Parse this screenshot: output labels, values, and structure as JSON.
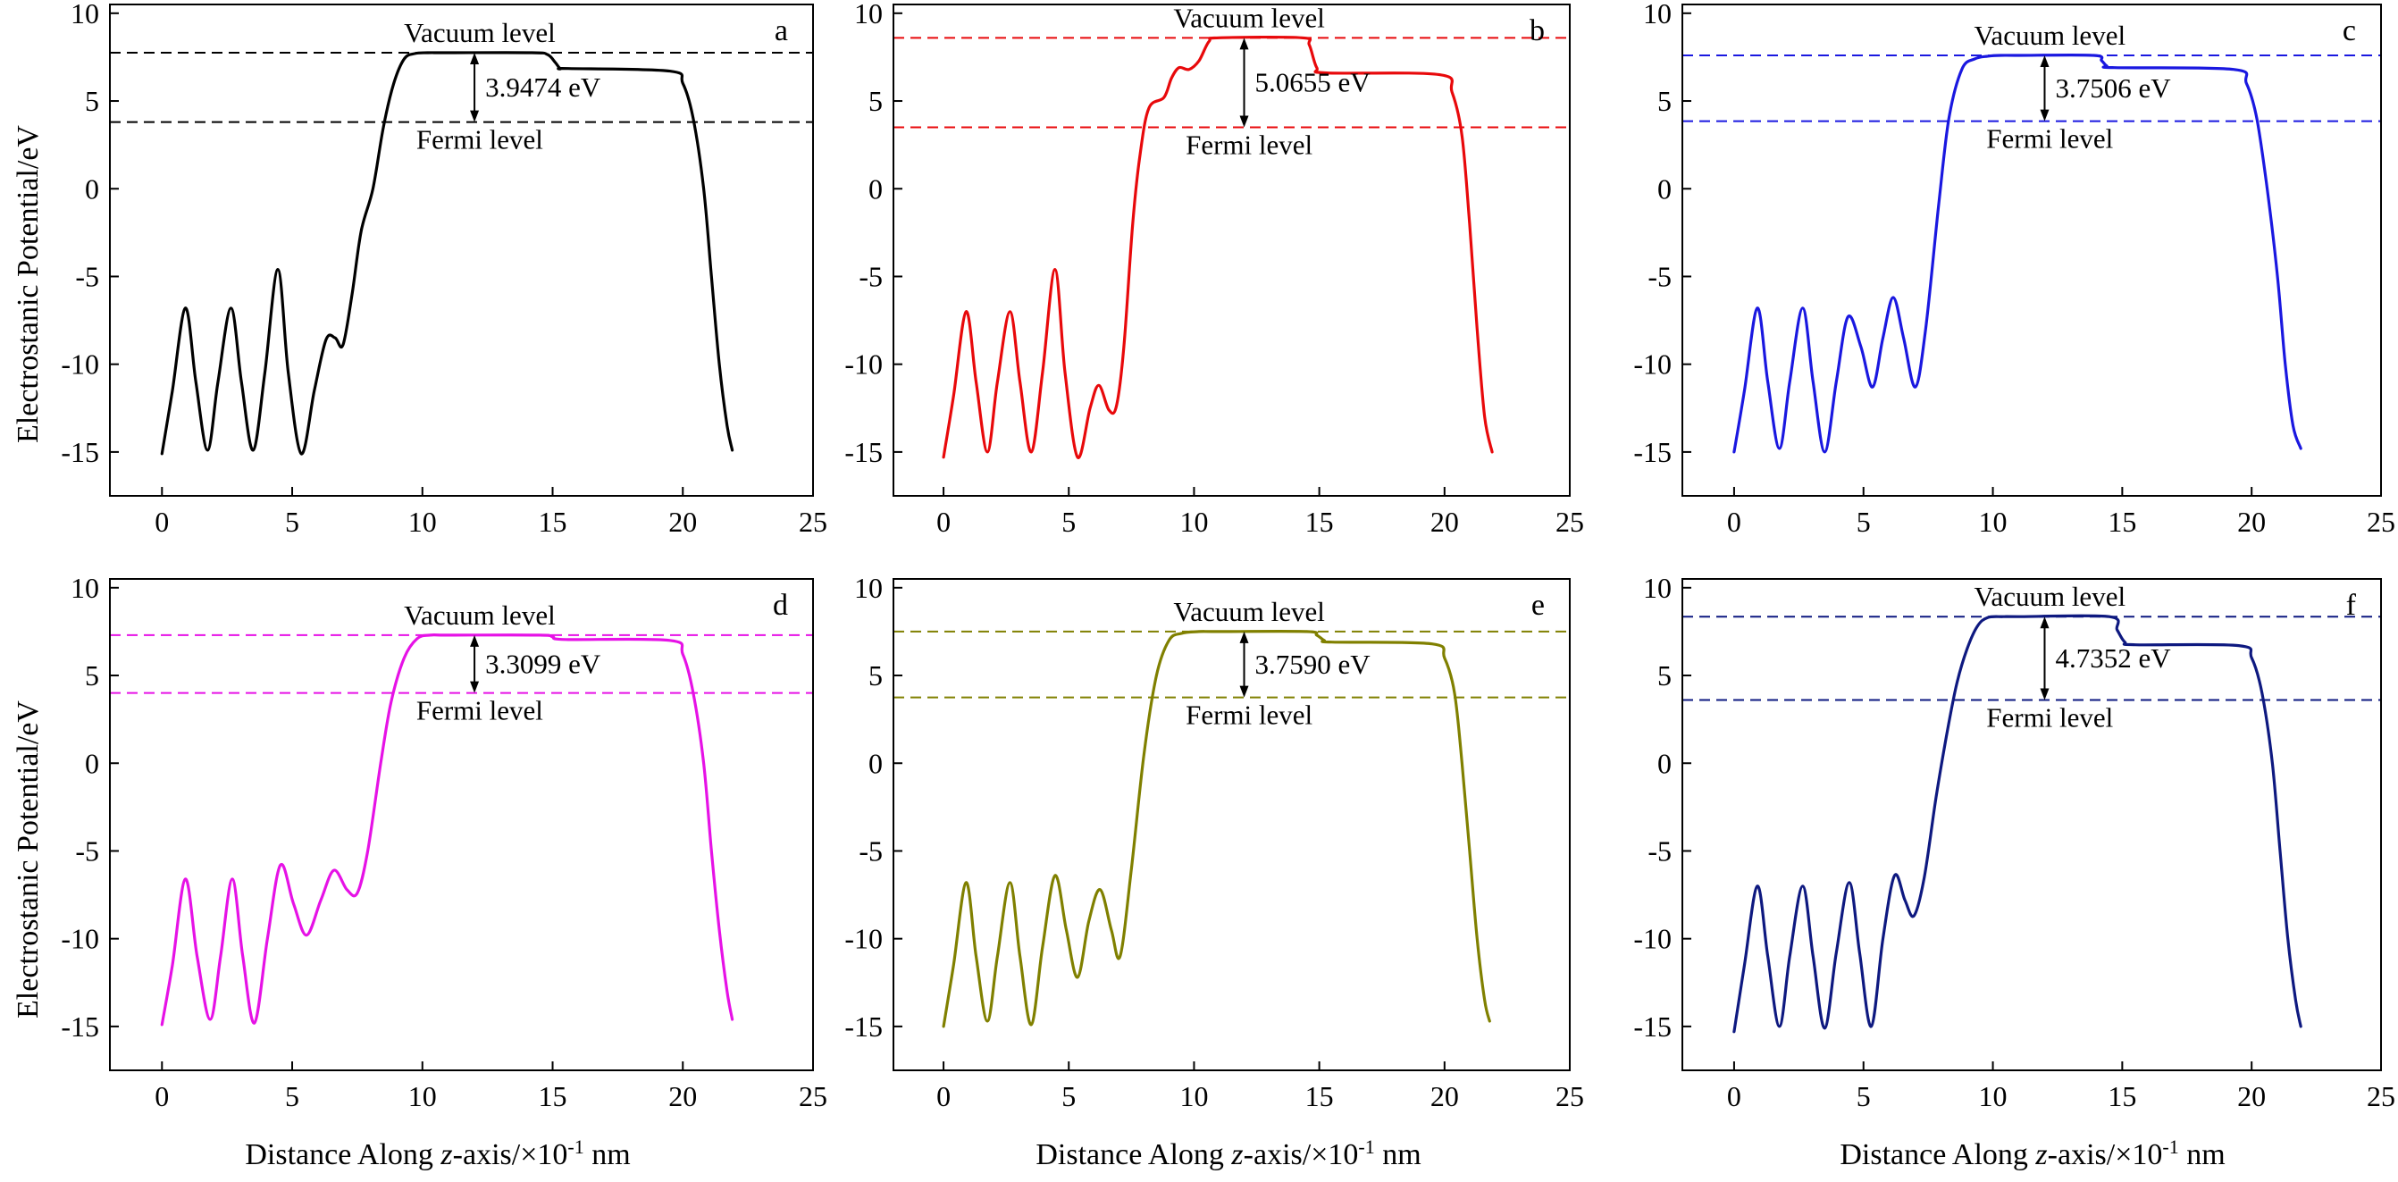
{
  "figure": {
    "y_axis_label": "Electrostanic Potential/eV",
    "x_axis_label_prefix": "Distance Along ",
    "x_axis_label_italic": "z",
    "x_axis_label_mid": "-axis/×10",
    "x_axis_label_sup": "-1",
    "x_axis_label_suffix": " nm",
    "vacuum_label": "Vacuum level",
    "fermi_label": "Fermi level"
  },
  "chart_data": [
    {
      "type": "line",
      "panel_label": "a",
      "color": "#000000",
      "xlim": [
        -2,
        25
      ],
      "ylim": [
        -17.5,
        10.5
      ],
      "xticks": [
        0,
        5,
        10,
        15,
        20,
        25
      ],
      "yticks": [
        -15,
        -10,
        -5,
        0,
        5,
        10
      ],
      "vacuum_level": 7.75,
      "fermi_level": 3.8,
      "gap_label": "3.9474 eV",
      "x": [
        0,
        0.4,
        0.9,
        1.3,
        1.75,
        2.15,
        2.65,
        3.05,
        3.5,
        3.95,
        4.45,
        4.85,
        5.35,
        5.85,
        6.3,
        6.65,
        6.95,
        7.3,
        7.65,
        8.1,
        8.5,
        8.9,
        9.3,
        9.7,
        10.2,
        11,
        14.2,
        14.8,
        15.1,
        15.3,
        15.6,
        19.5,
        20.0,
        20.4,
        20.8,
        21.1,
        21.4,
        21.7,
        21.9
      ],
      "y": [
        -15.1,
        -11.5,
        -6.8,
        -11.0,
        -14.9,
        -11.0,
        -6.8,
        -11.0,
        -14.9,
        -10.5,
        -4.6,
        -10.5,
        -15.1,
        -11.5,
        -8.6,
        -8.5,
        -8.9,
        -6.0,
        -2.4,
        0.0,
        3.5,
        6.0,
        7.4,
        7.7,
        7.75,
        7.75,
        7.75,
        7.65,
        7.2,
        6.85,
        6.85,
        6.7,
        6.0,
        4.0,
        0.0,
        -5.0,
        -10.0,
        -13.5,
        -14.9
      ]
    },
    {
      "type": "line",
      "panel_label": "b",
      "color": "#e8090b",
      "xlim": [
        -2,
        25
      ],
      "ylim": [
        -17.5,
        10.5
      ],
      "xticks": [
        0,
        5,
        10,
        15,
        20,
        25
      ],
      "yticks": [
        -15,
        -10,
        -5,
        0,
        5,
        10
      ],
      "vacuum_level": 8.6,
      "fermi_level": 3.5,
      "gap_label": "5.0655 eV",
      "x": [
        0,
        0.4,
        0.9,
        1.3,
        1.75,
        2.15,
        2.65,
        3.05,
        3.5,
        3.95,
        4.45,
        4.85,
        5.35,
        5.85,
        6.2,
        6.6,
        6.9,
        7.2,
        7.55,
        7.85,
        8.2,
        8.8,
        9.1,
        9.4,
        9.8,
        10.2,
        10.6,
        11,
        14.3,
        14.6,
        14.9,
        15.3,
        19.8,
        20.3,
        20.7,
        21.0,
        21.3,
        21.6,
        21.9
      ],
      "y": [
        -15.3,
        -11.8,
        -7.0,
        -11.0,
        -15.0,
        -11.0,
        -7.0,
        -11.0,
        -15.0,
        -10.5,
        -4.6,
        -10.5,
        -15.3,
        -12.5,
        -11.2,
        -12.6,
        -12.4,
        -9.0,
        -2.0,
        2.0,
        4.6,
        5.2,
        6.3,
        6.9,
        6.8,
        7.3,
        8.4,
        8.6,
        8.6,
        8.2,
        6.9,
        6.6,
        6.5,
        5.5,
        3.0,
        -2.0,
        -8.0,
        -13.0,
        -15.0
      ]
    },
    {
      "type": "line",
      "panel_label": "c",
      "color": "#1a18e0",
      "xlim": [
        -2,
        25
      ],
      "ylim": [
        -17.5,
        10.5
      ],
      "xticks": [
        0,
        5,
        10,
        15,
        20,
        25
      ],
      "yticks": [
        -15,
        -10,
        -5,
        0,
        5,
        10
      ],
      "vacuum_level": 7.6,
      "fermi_level": 3.85,
      "gap_label": "3.7506 eV",
      "x": [
        0,
        0.4,
        0.9,
        1.3,
        1.75,
        2.15,
        2.65,
        3.05,
        3.5,
        3.95,
        4.4,
        4.9,
        5.35,
        5.75,
        6.15,
        6.55,
        7.0,
        7.4,
        7.9,
        8.3,
        8.8,
        9.3,
        9.8,
        10.3,
        11,
        13.9,
        14.2,
        14.4,
        14.7,
        19.3,
        19.8,
        20.2,
        20.6,
        21.0,
        21.3,
        21.6,
        21.9
      ],
      "y": [
        -15.0,
        -11.5,
        -6.8,
        -11.0,
        -14.8,
        -11.0,
        -6.8,
        -11.0,
        -15.0,
        -11.0,
        -7.3,
        -9.0,
        -11.3,
        -8.5,
        -6.2,
        -8.5,
        -11.3,
        -8.0,
        -1.0,
        4.0,
        6.8,
        7.4,
        7.55,
        7.6,
        7.6,
        7.6,
        7.3,
        7.0,
        6.9,
        6.8,
        6.0,
        4.0,
        0.0,
        -5.0,
        -10.0,
        -13.5,
        -14.8
      ]
    },
    {
      "type": "line",
      "panel_label": "d",
      "color": "#e612e6",
      "xlim": [
        -2,
        25
      ],
      "ylim": [
        -17.5,
        10.5
      ],
      "xticks": [
        0,
        5,
        10,
        15,
        20,
        25
      ],
      "yticks": [
        -15,
        -10,
        -5,
        0,
        5,
        10
      ],
      "vacuum_level": 7.3,
      "fermi_level": 4.0,
      "gap_label": "3.3099 eV",
      "x": [
        0,
        0.4,
        0.9,
        1.35,
        1.85,
        2.25,
        2.7,
        3.1,
        3.55,
        4.05,
        4.55,
        5.05,
        5.55,
        6.1,
        6.6,
        7.1,
        7.5,
        7.9,
        8.4,
        8.8,
        9.3,
        9.8,
        10.3,
        11,
        14.5,
        15.0,
        15.5,
        19.5,
        20.0,
        20.4,
        20.8,
        21.1,
        21.4,
        21.7,
        21.9
      ],
      "y": [
        -14.9,
        -11.5,
        -6.6,
        -11.0,
        -14.6,
        -11.0,
        -6.6,
        -11.0,
        -14.8,
        -10.0,
        -5.8,
        -8.0,
        -9.8,
        -7.8,
        -6.1,
        -7.2,
        -7.4,
        -5.0,
        0.0,
        3.5,
        6.0,
        7.1,
        7.3,
        7.3,
        7.3,
        7.2,
        7.05,
        7.0,
        6.2,
        4.0,
        0.0,
        -5.0,
        -9.5,
        -13.0,
        -14.6
      ]
    },
    {
      "type": "line",
      "panel_label": "e",
      "color": "#808000",
      "xlim": [
        -2,
        25
      ],
      "ylim": [
        -17.5,
        10.5
      ],
      "xticks": [
        0,
        5,
        10,
        15,
        20,
        25
      ],
      "yticks": [
        -15,
        -10,
        -5,
        0,
        5,
        10
      ],
      "vacuum_level": 7.5,
      "fermi_level": 3.75,
      "gap_label": "3.7590 eV",
      "x": [
        0,
        0.4,
        0.9,
        1.3,
        1.75,
        2.15,
        2.65,
        3.05,
        3.5,
        3.95,
        4.45,
        4.9,
        5.35,
        5.8,
        6.25,
        6.7,
        7.05,
        7.5,
        8.0,
        8.5,
        9.0,
        9.5,
        10.2,
        11,
        14.5,
        14.9,
        15.2,
        15.5,
        19.5,
        20.0,
        20.4,
        20.7,
        21.0,
        21.3,
        21.6,
        21.8
      ],
      "y": [
        -15.0,
        -11.5,
        -6.8,
        -11.0,
        -14.7,
        -11.0,
        -6.8,
        -11.0,
        -14.9,
        -10.5,
        -6.4,
        -9.5,
        -12.2,
        -9.0,
        -7.2,
        -9.5,
        -11.0,
        -6.0,
        0.5,
        5.0,
        7.0,
        7.4,
        7.5,
        7.5,
        7.5,
        7.3,
        7.0,
        6.9,
        6.8,
        6.0,
        4.0,
        0.0,
        -5.0,
        -10.0,
        -13.5,
        -14.7
      ]
    },
    {
      "type": "line",
      "panel_label": "f",
      "color": "#0e1980",
      "xlim": [
        -2,
        25
      ],
      "ylim": [
        -17.5,
        10.5
      ],
      "xticks": [
        0,
        5,
        10,
        15,
        20,
        25
      ],
      "yticks": [
        -15,
        -10,
        -5,
        0,
        5,
        10
      ],
      "vacuum_level": 8.35,
      "fermi_level": 3.6,
      "gap_label": "4.7352 eV",
      "x": [
        0,
        0.4,
        0.9,
        1.3,
        1.75,
        2.15,
        2.65,
        3.05,
        3.5,
        3.95,
        4.45,
        4.85,
        5.3,
        5.75,
        6.2,
        6.6,
        6.95,
        7.35,
        7.8,
        8.2,
        8.6,
        9.0,
        9.4,
        9.8,
        10.4,
        11,
        14.5,
        14.8,
        15.1,
        15.5,
        19.5,
        20.0,
        20.4,
        20.8,
        21.1,
        21.4,
        21.7,
        21.9
      ],
      "y": [
        -15.3,
        -11.5,
        -7.0,
        -11.0,
        -15.0,
        -11.0,
        -7.0,
        -11.0,
        -15.1,
        -10.8,
        -6.8,
        -10.8,
        -15.0,
        -10.0,
        -6.4,
        -7.8,
        -8.7,
        -6.5,
        -2.0,
        1.5,
        4.5,
        6.5,
        7.8,
        8.3,
        8.35,
        8.35,
        8.35,
        7.6,
        6.9,
        6.75,
        6.7,
        6.0,
        4.0,
        0.0,
        -5.0,
        -10.0,
        -13.5,
        -15.0
      ]
    }
  ]
}
